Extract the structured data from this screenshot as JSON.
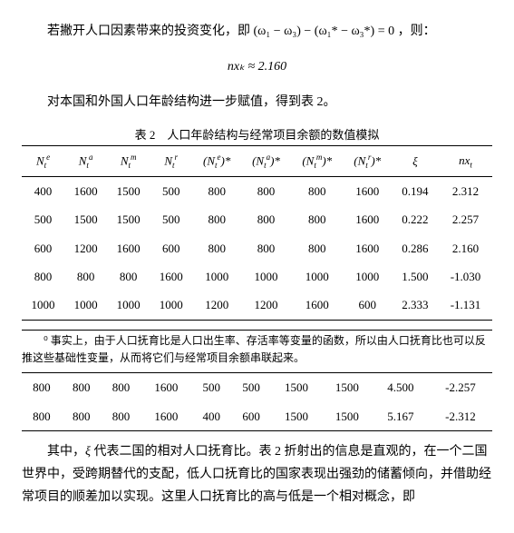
{
  "para1": "若撇开人口因素带来的投资变化，即 (ω₁ − ω₃) − (ω₁* − ω₃*) = 0 ，则：",
  "eq1": "nxₖ ≈ 2.160",
  "para2": "对本国和外国人口年龄结构进一步赋值，得到表 2。",
  "tableCaption": "表 2　人口年龄结构与经常项目余额的数值模拟",
  "headers": {
    "h1": {
      "base": "N",
      "sub": "t",
      "sup": "e"
    },
    "h2": {
      "base": "N",
      "sub": "t",
      "sup": "a"
    },
    "h3": {
      "base": "N",
      "sub": "t",
      "sup": "m"
    },
    "h4": {
      "base": "N",
      "sub": "t",
      "sup": "r"
    },
    "h5": {
      "base": "(N",
      "sub": "t",
      "sup": "e",
      "suffix": ")*"
    },
    "h6": {
      "base": "(N",
      "sub": "t",
      "sup": "a",
      "suffix": ")*"
    },
    "h7": {
      "base": "(N",
      "sub": "t",
      "sup": "m",
      "suffix": ")*"
    },
    "h8": {
      "base": "(N",
      "sub": "t",
      "sup": "r",
      "suffix": ")*"
    },
    "h9": "ξ",
    "h10": {
      "base": "nx",
      "sub": "t"
    }
  },
  "rows": [
    [
      "400",
      "1600",
      "1500",
      "500",
      "800",
      "800",
      "800",
      "1600",
      "0.194",
      "2.312"
    ],
    [
      "500",
      "1500",
      "1500",
      "500",
      "800",
      "800",
      "800",
      "1600",
      "0.222",
      "2.257"
    ],
    [
      "600",
      "1200",
      "1600",
      "600",
      "800",
      "800",
      "800",
      "1600",
      "0.286",
      "2.160"
    ],
    [
      "800",
      "800",
      "800",
      "1600",
      "1000",
      "1000",
      "1000",
      "1000",
      "1.500",
      "-1.030"
    ],
    [
      "1000",
      "1000",
      "1000",
      "1000",
      "1200",
      "1200",
      "1600",
      "600",
      "2.333",
      "-1.131"
    ]
  ],
  "rows2": [
    [
      "800",
      "800",
      "800",
      "1600",
      "500",
      "500",
      "1500",
      "1500",
      "4.500",
      "-2.257"
    ],
    [
      "800",
      "800",
      "800",
      "1600",
      "400",
      "600",
      "1500",
      "1500",
      "5.167",
      "-2.312"
    ]
  ],
  "footnote": "⁰ 事实上，由于人口抚育比是人口出生率、存活率等变量的函数，所以由人口抚育比也可以反推这些基础性变量，从而将它们与经常项目余额串联起来。",
  "para3_a": "其中，",
  "para3_xi": "ξ",
  "para3_b": " 代表二国的相对人口抚育比。表 2 折射出的信息是直观的，在一个二国世界中，受跨期替代的支配，低人口抚育比的国家表现出强劲的储蓄倾向，并借助经常项目的顺差加以实现。这里人口抚育比的高与低是一个相对概念，即"
}
